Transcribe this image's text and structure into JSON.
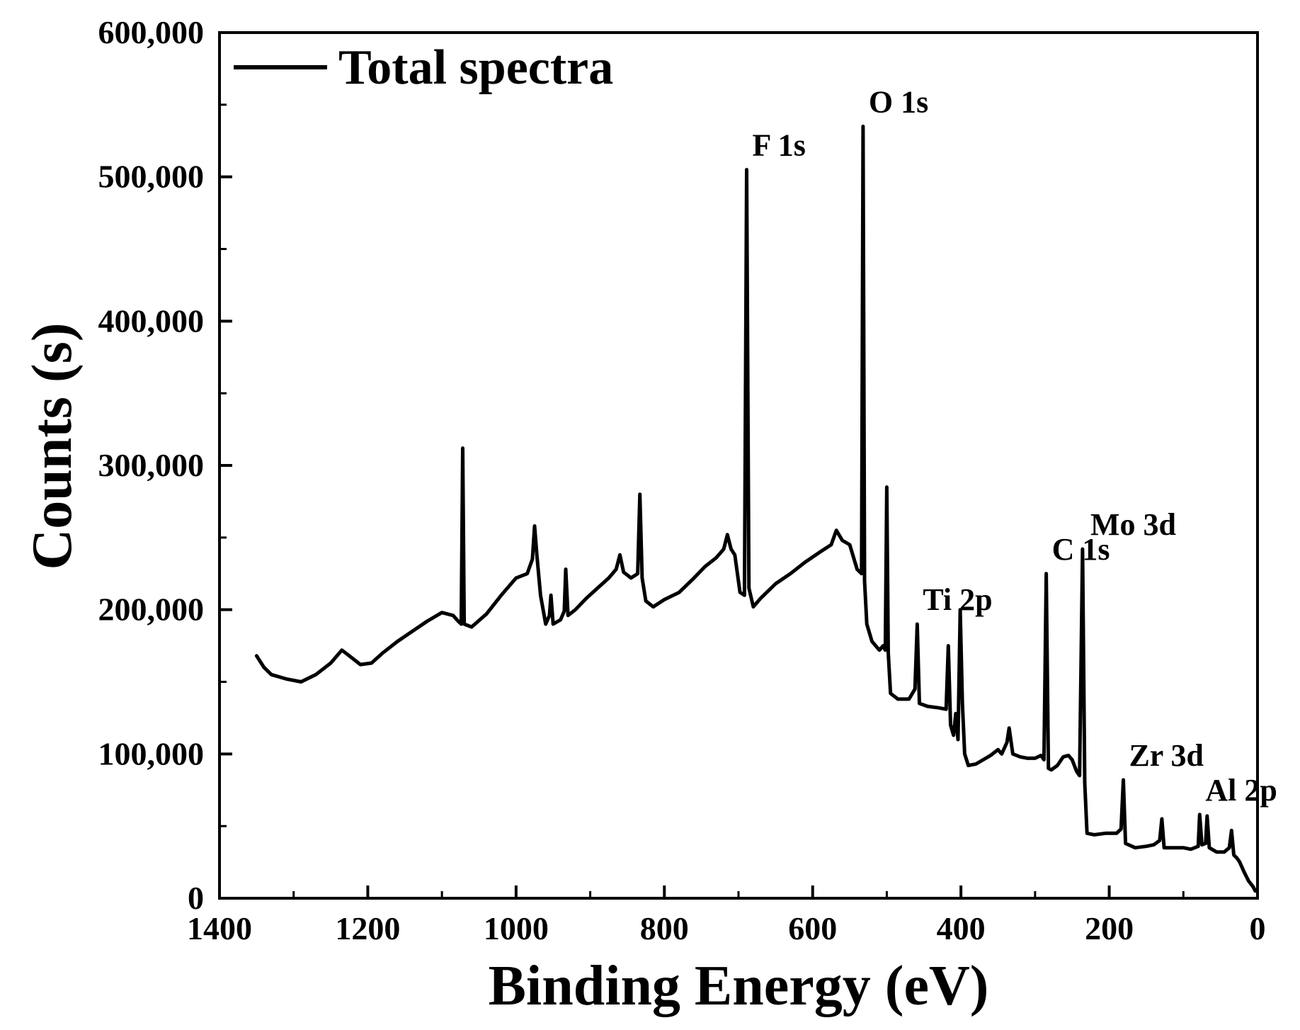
{
  "chart_data": {
    "type": "line",
    "title": "",
    "xlabel": "Binding Energy (eV)",
    "ylabel": "Counts (s)",
    "xlim": [
      1400,
      0
    ],
    "ylim": [
      0,
      600000
    ],
    "x_reversed": true,
    "grid": false,
    "legend_position": "top-left",
    "x_ticks": [
      1400,
      1200,
      1000,
      800,
      600,
      400,
      200,
      0
    ],
    "x_tick_labels": [
      "1400",
      "1200",
      "1000",
      "800",
      "600",
      "400",
      "200",
      "0"
    ],
    "y_ticks": [
      0,
      100000,
      200000,
      300000,
      400000,
      500000,
      600000
    ],
    "y_tick_labels": [
      "0",
      "100,000",
      "200,000",
      "300,000",
      "400,000",
      "500,000",
      "600,000"
    ],
    "series": [
      {
        "name": "Total spectra",
        "color": "#000000",
        "points": [
          [
            1350,
            168000
          ],
          [
            1340,
            160000
          ],
          [
            1330,
            155000
          ],
          [
            1310,
            152000
          ],
          [
            1290,
            150000
          ],
          [
            1270,
            155000
          ],
          [
            1250,
            163000
          ],
          [
            1235,
            172000
          ],
          [
            1225,
            168000
          ],
          [
            1210,
            162000
          ],
          [
            1195,
            163000
          ],
          [
            1180,
            170000
          ],
          [
            1160,
            178000
          ],
          [
            1140,
            185000
          ],
          [
            1120,
            192000
          ],
          [
            1100,
            198000
          ],
          [
            1085,
            196000
          ],
          [
            1078,
            192000
          ],
          [
            1074,
            190000
          ],
          [
            1072,
            312000
          ],
          [
            1070,
            190000
          ],
          [
            1060,
            188000
          ],
          [
            1040,
            197000
          ],
          [
            1020,
            210000
          ],
          [
            1000,
            222000
          ],
          [
            985,
            225000
          ],
          [
            978,
            235000
          ],
          [
            975,
            258000
          ],
          [
            972,
            238000
          ],
          [
            967,
            210000
          ],
          [
            960,
            190000
          ],
          [
            955,
            196000
          ],
          [
            953,
            210000
          ],
          [
            950,
            190000
          ],
          [
            940,
            193000
          ],
          [
            935,
            199000
          ],
          [
            933,
            228000
          ],
          [
            930,
            196000
          ],
          [
            920,
            200000
          ],
          [
            905,
            208000
          ],
          [
            890,
            215000
          ],
          [
            875,
            222000
          ],
          [
            865,
            228000
          ],
          [
            860,
            238000
          ],
          [
            855,
            226000
          ],
          [
            845,
            222000
          ],
          [
            836,
            225000
          ],
          [
            833,
            280000
          ],
          [
            830,
            222000
          ],
          [
            825,
            206000
          ],
          [
            815,
            202000
          ],
          [
            800,
            207000
          ],
          [
            780,
            212000
          ],
          [
            760,
            222000
          ],
          [
            745,
            230000
          ],
          [
            730,
            236000
          ],
          [
            720,
            242000
          ],
          [
            715,
            252000
          ],
          [
            710,
            242000
          ],
          [
            705,
            238000
          ],
          [
            698,
            212000
          ],
          [
            692,
            210000
          ],
          [
            689,
            505000
          ],
          [
            686,
            215000
          ],
          [
            680,
            202000
          ],
          [
            670,
            208000
          ],
          [
            650,
            218000
          ],
          [
            630,
            225000
          ],
          [
            610,
            233000
          ],
          [
            590,
            240000
          ],
          [
            575,
            245000
          ],
          [
            568,
            255000
          ],
          [
            560,
            248000
          ],
          [
            550,
            245000
          ],
          [
            540,
            228000
          ],
          [
            534,
            225000
          ],
          [
            532,
            535000
          ],
          [
            530,
            220000
          ],
          [
            527,
            190000
          ],
          [
            520,
            178000
          ],
          [
            510,
            172000
          ],
          [
            505,
            175000
          ],
          [
            502,
            172000
          ],
          [
            500,
            285000
          ],
          [
            498,
            170000
          ],
          [
            495,
            142000
          ],
          [
            485,
            138000
          ],
          [
            470,
            138000
          ],
          [
            462,
            145000
          ],
          [
            459,
            190000
          ],
          [
            456,
            135000
          ],
          [
            445,
            133000
          ],
          [
            430,
            132000
          ],
          [
            420,
            131000
          ],
          [
            417,
            175000
          ],
          [
            414,
            120000
          ],
          [
            410,
            113000
          ],
          [
            407,
            128000
          ],
          [
            404,
            110000
          ],
          [
            401,
            200000
          ],
          [
            398,
            135000
          ],
          [
            395,
            100000
          ],
          [
            390,
            92000
          ],
          [
            380,
            93000
          ],
          [
            370,
            96000
          ],
          [
            360,
            99000
          ],
          [
            350,
            103000
          ],
          [
            345,
            100000
          ],
          [
            338,
            108000
          ],
          [
            335,
            118000
          ],
          [
            330,
            100000
          ],
          [
            320,
            98000
          ],
          [
            310,
            97000
          ],
          [
            300,
            97000
          ],
          [
            292,
            99000
          ],
          [
            288,
            96000
          ],
          [
            285,
            225000
          ],
          [
            282,
            90000
          ],
          [
            278,
            89000
          ],
          [
            270,
            92000
          ],
          [
            262,
            98000
          ],
          [
            255,
            99000
          ],
          [
            250,
            96000
          ],
          [
            244,
            88000
          ],
          [
            240,
            85000
          ],
          [
            236,
            242000
          ],
          [
            233,
            80000
          ],
          [
            230,
            45000
          ],
          [
            220,
            44000
          ],
          [
            205,
            45000
          ],
          [
            190,
            45000
          ],
          [
            184,
            48000
          ],
          [
            181,
            82000
          ],
          [
            178,
            38000
          ],
          [
            165,
            35000
          ],
          [
            150,
            36000
          ],
          [
            140,
            37000
          ],
          [
            132,
            40000
          ],
          [
            129,
            55000
          ],
          [
            126,
            35000
          ],
          [
            115,
            35000
          ],
          [
            100,
            35000
          ],
          [
            90,
            34000
          ],
          [
            80,
            36000
          ],
          [
            78,
            58000
          ],
          [
            75,
            37000
          ],
          [
            70,
            38000
          ],
          [
            68,
            57000
          ],
          [
            65,
            35000
          ],
          [
            55,
            32000
          ],
          [
            45,
            32000
          ],
          [
            38,
            35000
          ],
          [
            35,
            47000
          ],
          [
            32,
            30000
          ],
          [
            28,
            28000
          ],
          [
            24,
            25000
          ],
          [
            18,
            18000
          ],
          [
            12,
            12000
          ],
          [
            6,
            8000
          ],
          [
            3,
            5000
          ]
        ]
      }
    ],
    "annotations": [
      {
        "text": "O 1s",
        "x": 532,
        "y": 535000
      },
      {
        "text": "F 1s",
        "x": 689,
        "y": 505000
      },
      {
        "text": "Ti 2p",
        "x": 459,
        "y": 190000
      },
      {
        "text": "C 1s",
        "x": 285,
        "y": 225000
      },
      {
        "text": "Mo 3d",
        "x": 233,
        "y": 242000
      },
      {
        "text": "Zr 3d",
        "x": 181,
        "y": 82000
      },
      {
        "text": "Al 2p",
        "x": 78,
        "y": 58000
      }
    ]
  }
}
